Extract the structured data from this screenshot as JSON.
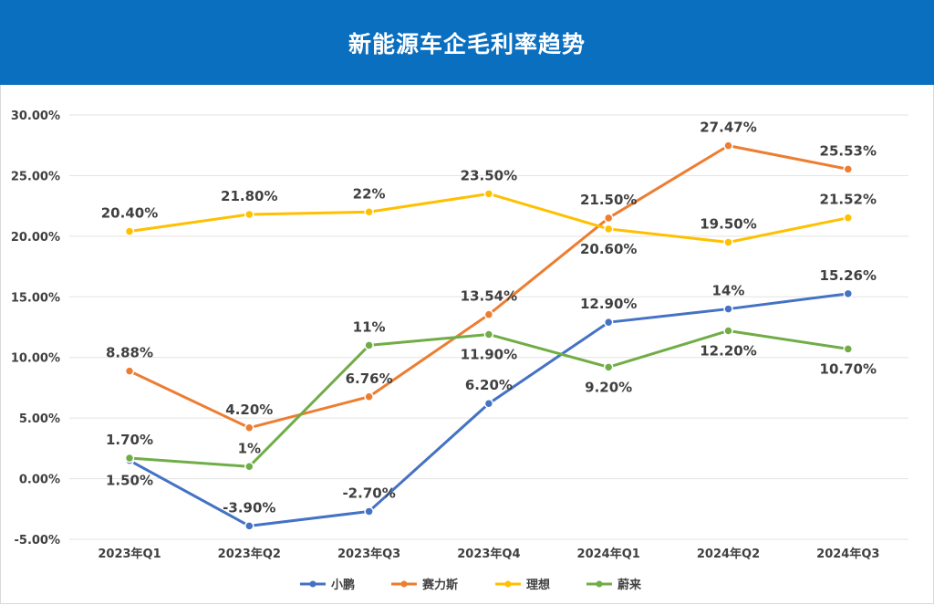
{
  "header": {
    "title": "新能源车企毛利率趋势"
  },
  "chart_data": {
    "type": "line",
    "title": "新能源车企毛利率趋势",
    "categories": [
      "2023年Q1",
      "2023年Q2",
      "2023年Q3",
      "2023年Q4",
      "2024年Q1",
      "2024年Q2",
      "2024年Q3"
    ],
    "ylim": [
      -5,
      30
    ],
    "yticks": [
      -5,
      0,
      5,
      10,
      15,
      20,
      25,
      30
    ],
    "ytick_labels": [
      "-5.00%",
      "0.00%",
      "5.00%",
      "10.00%",
      "15.00%",
      "20.00%",
      "25.00%",
      "30.00%"
    ],
    "grid": true,
    "legend": "bottom",
    "series": [
      {
        "name": "小鹏",
        "color": "#4472c4",
        "values": [
          1.5,
          -3.9,
          -2.7,
          6.2,
          12.9,
          14,
          15.26
        ],
        "labels": [
          "1.50%",
          "-3.90%",
          "-2.70%",
          "6.20%",
          "12.90%",
          "14%",
          "15.26%"
        ],
        "label_pos": [
          "below",
          "above",
          "above",
          "above",
          "above",
          "above",
          "above"
        ]
      },
      {
        "name": "赛力斯",
        "color": "#ed7d31",
        "values": [
          8.88,
          4.2,
          6.76,
          13.54,
          21.5,
          27.47,
          25.53
        ],
        "labels": [
          "8.88%",
          "4.20%",
          "6.76%",
          "13.54%",
          "21.50%",
          "27.47%",
          "25.53%"
        ],
        "label_pos": [
          "above",
          "above",
          "above",
          "above",
          "above",
          "above",
          "above"
        ]
      },
      {
        "name": "理想",
        "color": "#ffc000",
        "values": [
          20.4,
          21.8,
          22,
          23.5,
          20.6,
          19.5,
          21.52
        ],
        "labels": [
          "20.40%",
          "21.80%",
          "22%",
          "23.50%",
          "20.60%",
          "19.50%",
          "21.52%"
        ],
        "label_pos": [
          "above",
          "above",
          "above",
          "above",
          "below",
          "above",
          "above"
        ]
      },
      {
        "name": "蔚来",
        "color": "#70ad47",
        "values": [
          1.7,
          1,
          11,
          11.9,
          9.2,
          12.2,
          10.7
        ],
        "labels": [
          "1.70%",
          "1%",
          "11%",
          "11.90%",
          "9.20%",
          "12.20%",
          "10.70%"
        ],
        "label_pos": [
          "above",
          "above",
          "above",
          "below",
          "below",
          "below",
          "below"
        ]
      }
    ]
  }
}
